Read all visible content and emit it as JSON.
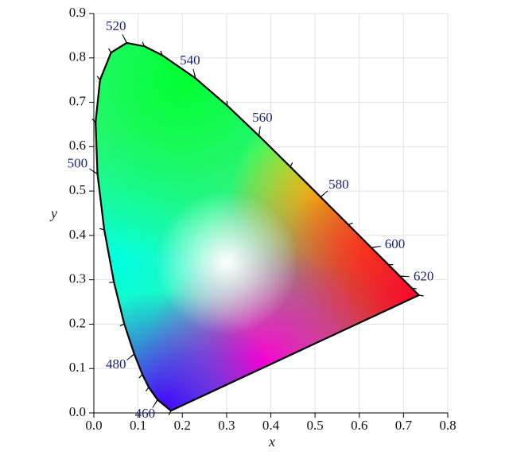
{
  "chart_data": {
    "type": "chromaticity",
    "x": [
      0.1741,
      0.144,
      0.1241,
      0.1096,
      0.0913,
      0.0687,
      0.0454,
      0.0235,
      0.0082,
      0.0039,
      0.0139,
      0.0389,
      0.0743,
      0.1142,
      0.1547,
      0.2296,
      0.3016,
      0.3731,
      0.4441,
      0.5125,
      0.5752,
      0.627,
      0.6658,
      0.6915,
      0.719,
      0.7347
    ],
    "values": [
      0.005,
      0.0297,
      0.0578,
      0.0868,
      0.1327,
      0.2007,
      0.295,
      0.4127,
      0.5384,
      0.6548,
      0.7502,
      0.812,
      0.8338,
      0.8262,
      0.8059,
      0.7543,
      0.6923,
      0.6245,
      0.5547,
      0.4866,
      0.4242,
      0.3725,
      0.334,
      0.3083,
      0.2809,
      0.2653
    ],
    "wavelength_marks": [
      {
        "wavelength": 460,
        "x": 0.144,
        "y": 0.0297
      },
      {
        "wavelength": 480,
        "x": 0.0913,
        "y": 0.1327
      },
      {
        "wavelength": 500,
        "x": 0.0082,
        "y": 0.5384
      },
      {
        "wavelength": 520,
        "x": 0.0743,
        "y": 0.8338
      },
      {
        "wavelength": 540,
        "x": 0.2296,
        "y": 0.7543
      },
      {
        "wavelength": 560,
        "x": 0.3731,
        "y": 0.6245
      },
      {
        "wavelength": 580,
        "x": 0.5125,
        "y": 0.4866
      },
      {
        "wavelength": 600,
        "x": 0.627,
        "y": 0.3725
      },
      {
        "wavelength": 620,
        "x": 0.6915,
        "y": 0.3083
      }
    ],
    "x_label": "x",
    "y_label": "y",
    "xlim": [
      0,
      0.8
    ],
    "ylim": [
      0,
      0.9
    ],
    "xticks": [
      {
        "value": 0,
        "label": "0.0"
      },
      0.1,
      0.2,
      0.3,
      0.4,
      0.5,
      0.6,
      0.7,
      0.8
    ],
    "yticks": [
      {
        "value": 0,
        "label": "0.0"
      },
      0.1,
      0.2,
      0.3,
      0.4,
      0.5,
      0.6,
      0.7,
      0.8,
      0.9
    ],
    "grid": true
  }
}
